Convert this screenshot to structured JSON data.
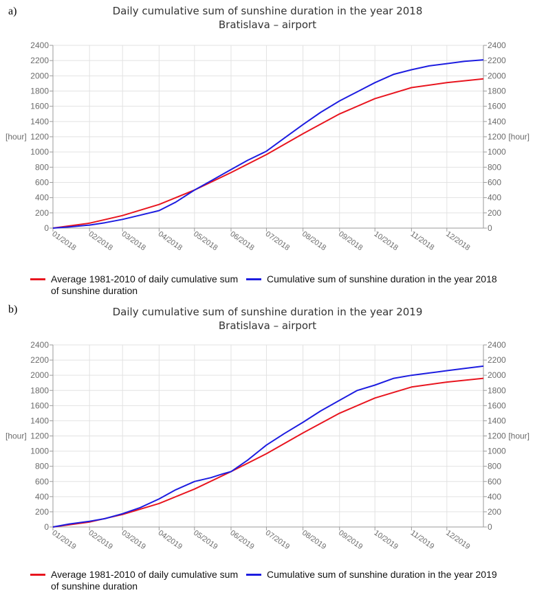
{
  "charts": [
    {
      "panel_label": "a)",
      "title": "Daily cumulative sum of sunshine duration in the year 2018",
      "subtitle": "Bratislava – airport"
    },
    {
      "panel_label": "b)",
      "title": "Daily cumulative sum of sunshine duration in the year 2019",
      "subtitle": "Bratislava – airport"
    }
  ],
  "colors": {
    "average": "#e8141e",
    "current": "#1c1ce0",
    "grid": "#e2e2e2",
    "axis": "#9a9a9a",
    "tick_text": "#6b6b6b"
  },
  "chart_data": [
    {
      "type": "line",
      "title": "Daily cumulative sum of sunshine duration in the year 2018",
      "subtitle": "Bratislava – airport",
      "ylabel_left": "[hour]",
      "ylabel_right": "[hour]",
      "ylim": [
        0,
        2400
      ],
      "yticks": [
        0,
        200,
        400,
        600,
        800,
        1000,
        1200,
        1400,
        1600,
        1800,
        2000,
        2200,
        2400
      ],
      "xlim": [
        1,
        366
      ],
      "categories": [
        "01/2018",
        "02/2018",
        "03/2018",
        "04/2018",
        "05/2018",
        "06/2018",
        "07/2018",
        "08/2018",
        "09/2018",
        "10/2018",
        "11/2018",
        "12/2018"
      ],
      "category_days": [
        1,
        32,
        60,
        91,
        121,
        152,
        182,
        213,
        244,
        274,
        305,
        335
      ],
      "grid": true,
      "series": [
        {
          "name": "Average 1981-2010 of daily cumulative sum of sunshine duration",
          "legend_lines": [
            "Average 1981-2010 of daily cumulative sum",
            "of sunshine duration"
          ],
          "color_key": "average",
          "x": [
            1,
            32,
            60,
            91,
            121,
            152,
            182,
            213,
            244,
            274,
            305,
            335,
            366
          ],
          "y": [
            0,
            65,
            165,
            310,
            500,
            730,
            965,
            1240,
            1500,
            1700,
            1845,
            1910,
            1960
          ]
        },
        {
          "name": "Cumulative sum of sunshine duration in the year 2018",
          "legend_lines": [
            "Cumulative sum of sunshine duration in the year 2018"
          ],
          "color_key": "current",
          "x": [
            1,
            15,
            32,
            45,
            60,
            75,
            91,
            105,
            121,
            135,
            152,
            166,
            182,
            197,
            213,
            228,
            244,
            259,
            274,
            290,
            305,
            320,
            335,
            350,
            366
          ],
          "y": [
            0,
            15,
            40,
            70,
            115,
            170,
            230,
            340,
            500,
            620,
            770,
            890,
            1010,
            1180,
            1360,
            1520,
            1670,
            1790,
            1910,
            2020,
            2080,
            2130,
            2160,
            2190,
            2210
          ]
        }
      ]
    },
    {
      "type": "line",
      "title": "Daily cumulative sum of sunshine duration in the year 2019",
      "subtitle": "Bratislava – airport",
      "ylabel_left": "[hour]",
      "ylabel_right": "[hour]",
      "ylim": [
        0,
        2400
      ],
      "yticks": [
        0,
        200,
        400,
        600,
        800,
        1000,
        1200,
        1400,
        1600,
        1800,
        2000,
        2200,
        2400
      ],
      "xlim": [
        1,
        366
      ],
      "categories": [
        "01/2019",
        "02/2019",
        "03/2019",
        "04/2019",
        "05/2019",
        "06/2019",
        "07/2019",
        "08/2019",
        "09/2019",
        "10/2019",
        "11/2019",
        "12/2019"
      ],
      "category_days": [
        1,
        32,
        60,
        91,
        121,
        152,
        182,
        213,
        244,
        274,
        305,
        335
      ],
      "grid": true,
      "series": [
        {
          "name": "Average 1981-2010 of daily cumulative sum of sunshine duration",
          "legend_lines": [
            "Average 1981-2010 of daily cumulative sum",
            "of sunshine duration"
          ],
          "color_key": "average",
          "x": [
            1,
            32,
            60,
            91,
            121,
            152,
            182,
            213,
            244,
            274,
            305,
            335,
            366
          ],
          "y": [
            0,
            65,
            165,
            310,
            500,
            730,
            965,
            1240,
            1500,
            1700,
            1845,
            1910,
            1960
          ]
        },
        {
          "name": "Cumulative sum of sunshine duration in the year 2019",
          "legend_lines": [
            "Cumulative sum of sunshine duration in the year 2019"
          ],
          "color_key": "current",
          "x": [
            1,
            15,
            32,
            45,
            60,
            75,
            91,
            105,
            121,
            135,
            145,
            152,
            166,
            182,
            197,
            213,
            228,
            244,
            259,
            274,
            290,
            305,
            320,
            335,
            350,
            366
          ],
          "y": [
            0,
            40,
            75,
            110,
            175,
            255,
            370,
            490,
            600,
            650,
            700,
            730,
            880,
            1080,
            1230,
            1380,
            1530,
            1670,
            1800,
            1870,
            1960,
            2000,
            2030,
            2060,
            2090,
            2120
          ]
        }
      ]
    }
  ]
}
